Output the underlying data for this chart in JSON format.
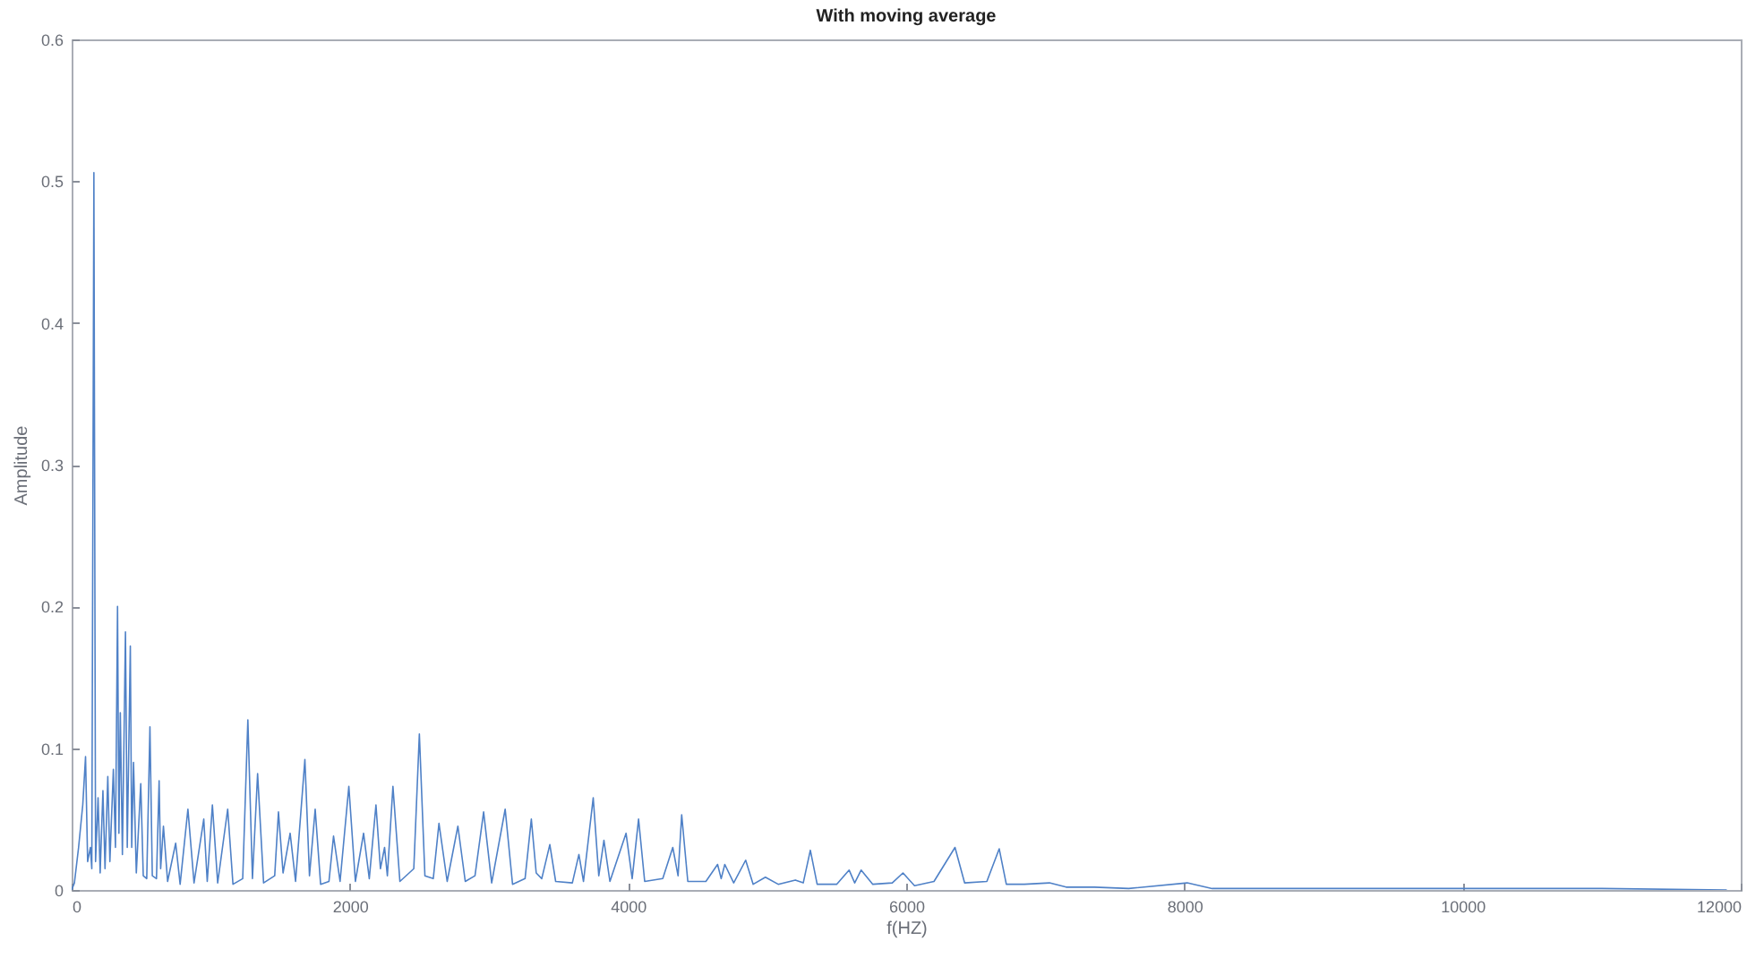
{
  "chart_data": {
    "type": "line",
    "title": "With moving average",
    "xlabel": "f(HZ)",
    "ylabel": "Amplitude",
    "color": "#4f81c7",
    "x": [
      0,
      20,
      50,
      80,
      100,
      115,
      135,
      145,
      160,
      172,
      190,
      205,
      225,
      240,
      260,
      275,
      300,
      315,
      330,
      340,
      350,
      365,
      387,
      400,
      422,
      432,
      445,
      465,
      497,
      515,
      540,
      563,
      580,
      610,
      629,
      640,
      660,
      690,
      748,
      780,
      836,
      880,
      950,
      975,
      1012,
      1050,
      1122,
      1160,
      1230,
      1267,
      1300,
      1337,
      1380,
      1460,
      1487,
      1520,
      1571,
      1610,
      1677,
      1710,
      1751,
      1790,
      1850,
      1883,
      1930,
      1993,
      2040,
      2099,
      2140,
      2188,
      2220,
      2250,
      2270,
      2310,
      2360,
      2460,
      2500,
      2540,
      2600,
      2641,
      2700,
      2777,
      2830,
      2900,
      2962,
      3020,
      3117,
      3170,
      3260,
      3305,
      3340,
      3380,
      3438,
      3480,
      3600,
      3647,
      3680,
      3750,
      3790,
      3827,
      3870,
      3986,
      4030,
      4076,
      4120,
      4250,
      4322,
      4360,
      4386,
      4430,
      4560,
      4644,
      4670,
      4696,
      4760,
      4846,
      4900,
      4988,
      5080,
      5203,
      5260,
      5311,
      5360,
      5500,
      5590,
      5630,
      5676,
      5760,
      5900,
      5977,
      6060,
      6200,
      6351,
      6420,
      6580,
      6669,
      6720,
      6850,
      7030,
      7150,
      7353,
      7600,
      8020,
      8200,
      9000,
      10000,
      11000,
      11900
    ],
    "values": [
      0,
      0.005,
      0.03,
      0.06,
      0.094,
      0.02,
      0.03,
      0.015,
      0.506,
      0.02,
      0.065,
      0.012,
      0.07,
      0.015,
      0.08,
      0.02,
      0.085,
      0.03,
      0.2,
      0.04,
      0.125,
      0.025,
      0.182,
      0.03,
      0.172,
      0.03,
      0.09,
      0.012,
      0.075,
      0.01,
      0.008,
      0.115,
      0.01,
      0.008,
      0.077,
      0.015,
      0.045,
      0.006,
      0.033,
      0.004,
      0.057,
      0.005,
      0.05,
      0.006,
      0.06,
      0.005,
      0.057,
      0.004,
      0.008,
      0.12,
      0.008,
      0.082,
      0.005,
      0.01,
      0.055,
      0.012,
      0.04,
      0.006,
      0.092,
      0.01,
      0.057,
      0.004,
      0.006,
      0.038,
      0.006,
      0.073,
      0.006,
      0.04,
      0.008,
      0.06,
      0.015,
      0.03,
      0.01,
      0.073,
      0.006,
      0.015,
      0.11,
      0.01,
      0.008,
      0.047,
      0.006,
      0.045,
      0.006,
      0.01,
      0.055,
      0.005,
      0.057,
      0.004,
      0.008,
      0.05,
      0.012,
      0.008,
      0.032,
      0.006,
      0.005,
      0.025,
      0.006,
      0.065,
      0.01,
      0.035,
      0.006,
      0.04,
      0.008,
      0.05,
      0.006,
      0.008,
      0.03,
      0.01,
      0.053,
      0.006,
      0.006,
      0.018,
      0.008,
      0.018,
      0.005,
      0.021,
      0.004,
      0.009,
      0.004,
      0.007,
      0.005,
      0.028,
      0.004,
      0.004,
      0.014,
      0.005,
      0.014,
      0.004,
      0.005,
      0.012,
      0.003,
      0.006,
      0.03,
      0.005,
      0.006,
      0.029,
      0.004,
      0.004,
      0.005,
      0.002,
      0.002,
      0.001,
      0.005,
      0.001,
      0.001,
      0.001,
      0.001,
      0
    ],
    "xlim": [
      0,
      12000
    ],
    "xticks": [
      0,
      2000,
      4000,
      6000,
      8000,
      10000,
      12000
    ],
    "ylim": [
      0,
      0.6
    ],
    "yticks": [
      0,
      0.1,
      0.2,
      0.3,
      0.4,
      0.5,
      0.6
    ]
  }
}
